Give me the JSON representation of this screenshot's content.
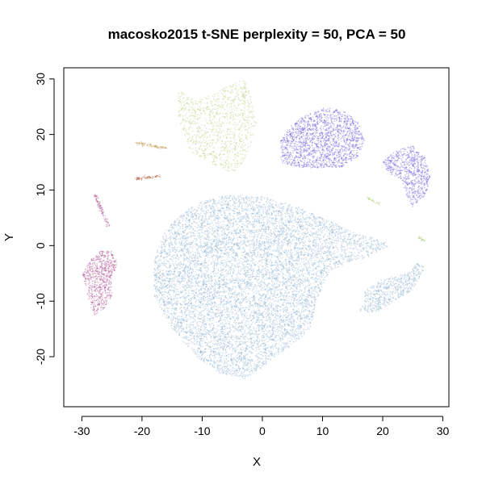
{
  "chart_data": {
    "type": "scatter",
    "title": "macosko2015 t-SNE perplexity = 50, PCA = 50",
    "xlabel": "X",
    "ylabel": "Y",
    "xlim": [
      -33,
      31
    ],
    "ylim": [
      -29,
      32
    ],
    "xticks": [
      -30,
      -20,
      -10,
      0,
      10,
      20,
      30
    ],
    "yticks": [
      -20,
      -10,
      0,
      10,
      20,
      30
    ],
    "xtick_labels": [
      "-30",
      "-20",
      "-10",
      "0",
      "10",
      "20",
      "30"
    ],
    "ytick_labels": [
      "-20",
      "-10",
      "0",
      "10",
      "20",
      "30"
    ],
    "grid": false,
    "legend": "none",
    "series": [
      {
        "color": "#7fa6c8",
        "clusters": [
          {
            "shape": "blob",
            "n": 9000,
            "pts": [
              [
                -18,
                -2
              ],
              [
                -16,
                3
              ],
              [
                -13,
                6
              ],
              [
                -10,
                8
              ],
              [
                -6,
                9
              ],
              [
                0,
                9
              ],
              [
                6,
                7
              ],
              [
                12,
                4
              ],
              [
                16,
                2
              ],
              [
                20,
                1
              ],
              [
                21,
                0
              ],
              [
                18,
                -2
              ],
              [
                14,
                -3
              ],
              [
                11,
                -5
              ],
              [
                9,
                -10
              ],
              [
                8,
                -15
              ],
              [
                5,
                -18
              ],
              [
                2,
                -20
              ],
              [
                0,
                -22
              ],
              [
                -3,
                -24
              ],
              [
                -7,
                -23
              ],
              [
                -11,
                -20
              ],
              [
                -15,
                -15
              ],
              [
                -18,
                -9
              ]
            ]
          },
          {
            "shape": "blob",
            "n": 600,
            "pts": [
              [
                17,
                -8
              ],
              [
                20,
                -6
              ],
              [
                24,
                -5
              ],
              [
                26,
                -3
              ],
              [
                27,
                -4
              ],
              [
                25,
                -8
              ],
              [
                22,
                -10
              ],
              [
                19,
                -12
              ],
              [
                16,
                -12
              ],
              [
                17,
                -10
              ]
            ]
          }
        ]
      },
      {
        "color": "#5b3fd6",
        "clusters": [
          {
            "shape": "blob",
            "n": 1700,
            "pts": [
              [
                3,
                19
              ],
              [
                5,
                22
              ],
              [
                8,
                24
              ],
              [
                11,
                25
              ],
              [
                14,
                24
              ],
              [
                16,
                22
              ],
              [
                17,
                19
              ],
              [
                16,
                16
              ],
              [
                13,
                14
              ],
              [
                9,
                14
              ],
              [
                6,
                14
              ],
              [
                3,
                15
              ]
            ]
          },
          {
            "shape": "blob",
            "n": 700,
            "pts": [
              [
                20,
                15
              ],
              [
                22,
                17
              ],
              [
                25,
                18
              ],
              [
                27,
                16
              ],
              [
                28,
                12
              ],
              [
                27,
                9
              ],
              [
                25,
                7
              ],
              [
                24,
                9
              ],
              [
                23,
                12
              ],
              [
                21,
                13
              ]
            ]
          }
        ]
      },
      {
        "color": "#a8c86a",
        "clusters": [
          {
            "shape": "blob",
            "n": 1100,
            "pts": [
              [
                -14,
                28
              ],
              [
                -11,
                26
              ],
              [
                -7,
                28
              ],
              [
                -3,
                30
              ],
              [
                -2,
                27
              ],
              [
                -1,
                22
              ],
              [
                -2,
                18
              ],
              [
                -3,
                15
              ],
              [
                -5,
                13
              ],
              [
                -9,
                15
              ],
              [
                -12,
                17
              ],
              [
                -14,
                23
              ]
            ]
          },
          {
            "shape": "seg",
            "n": 30,
            "from": [
              17.5,
              8.5
            ],
            "to": [
              19.5,
              7.5
            ]
          },
          {
            "shape": "seg",
            "n": 25,
            "from": [
              26,
              1.5
            ],
            "to": [
              27,
              0.8
            ]
          }
        ]
      },
      {
        "color": "#b8862a",
        "clusters": [
          {
            "shape": "seg",
            "n": 80,
            "from": [
              -21,
              18.5
            ],
            "to": [
              -16,
              17.5
            ]
          }
        ]
      },
      {
        "color": "#b04a2a",
        "clusters": [
          {
            "shape": "seg",
            "n": 70,
            "from": [
              -21,
              12
            ],
            "to": [
              -17,
              12.5
            ]
          }
        ]
      },
      {
        "color": "#a1347f",
        "clusters": [
          {
            "shape": "blob",
            "n": 700,
            "pts": [
              [
                -29,
                -3
              ],
              [
                -27,
                -1
              ],
              [
                -25,
                -1
              ],
              [
                -24,
                -3
              ],
              [
                -25,
                -6
              ],
              [
                -25,
                -9
              ],
              [
                -26,
                -11
              ],
              [
                -28,
                -13
              ],
              [
                -29,
                -9
              ],
              [
                -30,
                -5
              ]
            ]
          },
          {
            "shape": "seg",
            "n": 90,
            "from": [
              -28,
              9.5
            ],
            "to": [
              -25.5,
              3.5
            ]
          }
        ]
      }
    ]
  }
}
